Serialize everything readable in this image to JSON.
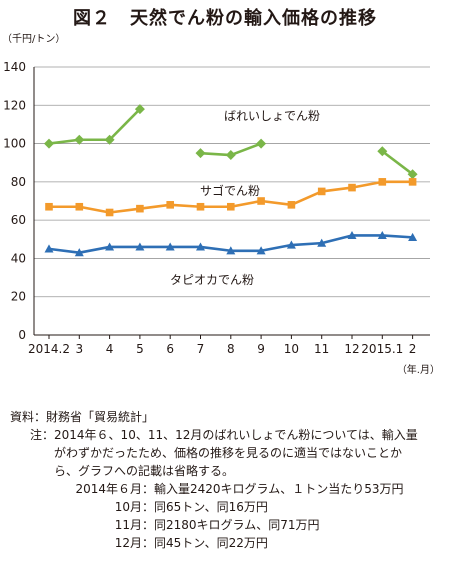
{
  "title": "図２　天然でん粉の輸入価格の推移",
  "chart_data": {
    "type": "line",
    "yunit": "（千円/トン）",
    "xunit": "（年.月）",
    "ylim": [
      0,
      140
    ],
    "yticks": [
      0,
      20,
      40,
      60,
      80,
      100,
      120,
      140
    ],
    "grid": true,
    "categories": [
      "2014.2",
      "3",
      "4",
      "5",
      "6",
      "7",
      "8",
      "9",
      "10",
      "11",
      "12",
      "2015.1",
      "2"
    ],
    "series": [
      {
        "name": "ばれいしょでん粉",
        "color": "#7ab648",
        "marker": "diamond",
        "values": [
          100,
          102,
          102,
          118,
          null,
          95,
          94,
          100,
          null,
          null,
          null,
          96,
          84
        ]
      },
      {
        "name": "サゴでん粉",
        "color": "#f39a2b",
        "marker": "square",
        "values": [
          67,
          67,
          64,
          66,
          68,
          67,
          67,
          70,
          68,
          75,
          77,
          80,
          80
        ]
      },
      {
        "name": "タピオカでん粉",
        "color": "#2e6fb5",
        "marker": "triangle",
        "values": [
          45,
          43,
          46,
          46,
          46,
          46,
          44,
          44,
          47,
          48,
          52,
          52,
          51
        ]
      }
    ]
  },
  "notes": {
    "source_label": "資料：",
    "source_text": "財務省「貿易統計」",
    "note_label": "注：",
    "note_lines": [
      "2014年６、10、11、12月のばれいしょでん粉については、輸入量",
      "がわずかだったため、価格の推移を見るのに適当ではないことか",
      "ら、グラフへの記載は省略する。"
    ],
    "details": [
      {
        "month": "2014年６月：",
        "text": "輸入量2420キログラム、１トン当たり53万円"
      },
      {
        "month": "10月：",
        "text": "同65トン、同16万円"
      },
      {
        "month": "11月：",
        "text": "同2180キログラム、同71万円"
      },
      {
        "month": "12月：",
        "text": "同45トン、同22万円"
      }
    ]
  }
}
